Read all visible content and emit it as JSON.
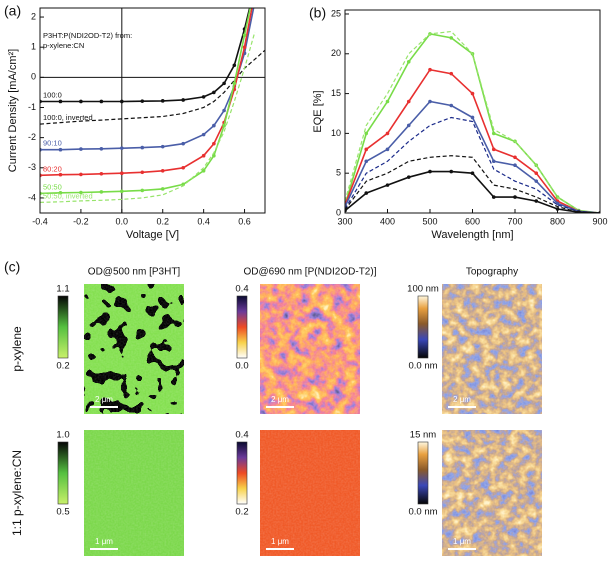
{
  "chart_data": [
    {
      "type": "line",
      "panel_label": "(a)",
      "xlabel": "Voltage [V]",
      "ylabel": "Current Density [mA/cm²]",
      "legend_title": "P3HT:P(NDI2OD-T2) from:",
      "legend_subtitle": "p-xylene:CN",
      "zero_lines": true,
      "x": [
        -0.4,
        -0.3,
        -0.2,
        -0.1,
        0,
        0.1,
        0.2,
        0.3,
        0.4,
        0.45,
        0.5,
        0.55,
        0.6,
        0.65,
        0.7
      ],
      "xlim": [
        -0.4,
        0.7
      ],
      "xticks": [
        -0.4,
        -0.2,
        {
          "value": 0,
          "label": "0.0"
        },
        0.2,
        0.4,
        0.6
      ],
      "ylim": [
        -4.5,
        2.3
      ],
      "yticks": [
        -4,
        -3,
        -2,
        -1,
        0,
        1,
        2
      ],
      "series": [
        {
          "name": "100:0",
          "color": "#111111",
          "dashed": false,
          "markers": true,
          "values": [
            -0.8,
            -0.8,
            -0.8,
            -0.8,
            -0.8,
            -0.79,
            -0.78,
            -0.75,
            -0.65,
            -0.5,
            -0.2,
            0.4,
            1.6,
            3.0,
            null
          ]
        },
        {
          "name": "100:0, inverted",
          "color": "#111111",
          "dashed": true,
          "markers": false,
          "values": [
            -1.55,
            -1.5,
            -1.45,
            -1.42,
            -1.38,
            -1.34,
            -1.3,
            -1.2,
            -1.0,
            -0.8,
            -0.5,
            -0.1,
            0.3,
            0.6,
            0.9
          ]
        },
        {
          "name": "90:10",
          "color": "#4a5ea8",
          "dashed": false,
          "markers": true,
          "values": [
            -2.4,
            -2.4,
            -2.38,
            -2.37,
            -2.35,
            -2.33,
            -2.3,
            -2.2,
            -1.9,
            -1.6,
            -1.1,
            -0.3,
            0.8,
            2.5,
            null
          ]
        },
        {
          "name": "80:20",
          "color": "#e83030",
          "dashed": false,
          "markers": true,
          "values": [
            -3.25,
            -3.23,
            -3.22,
            -3.2,
            -3.18,
            -3.15,
            -3.1,
            -3.0,
            -2.6,
            -2.2,
            -1.5,
            -0.4,
            1.0,
            2.8,
            null
          ]
        },
        {
          "name": "50:50",
          "color": "#78dc48",
          "dashed": false,
          "markers": true,
          "values": [
            -3.85,
            -3.83,
            -3.82,
            -3.8,
            -3.78,
            -3.75,
            -3.7,
            -3.55,
            -3.1,
            -2.6,
            -1.6,
            -0.2,
            1.4,
            3.0,
            null
          ]
        },
        {
          "name": "50:50, inverted",
          "color": "#98e46c",
          "dashed": true,
          "markers": false,
          "values": [
            -4.15,
            -4.13,
            -4.1,
            -4.08,
            -4.05,
            -4.0,
            -3.9,
            -3.6,
            -3.0,
            -2.5,
            -1.8,
            -0.8,
            0.3,
            1.5,
            null
          ]
        }
      ]
    },
    {
      "type": "line",
      "panel_label": "(b)",
      "xlabel": "Wavelength [nm]",
      "ylabel": "EQE [%]",
      "x": [
        300,
        350,
        400,
        450,
        500,
        550,
        600,
        650,
        700,
        750,
        800,
        850,
        900
      ],
      "xlim": [
        300,
        900
      ],
      "xticks": [
        300,
        400,
        500,
        600,
        700,
        800,
        900
      ],
      "ylim": [
        0,
        25.5
      ],
      "yticks": [
        0,
        5,
        10,
        15,
        20,
        25
      ],
      "series": [
        {
          "color": "#78dc48",
          "dashed": false,
          "markers": true,
          "values": [
            1,
            10,
            14,
            19,
            22.5,
            22,
            20,
            10,
            9,
            6,
            2,
            0.3,
            0
          ]
        },
        {
          "color": "#98e46c",
          "dashed": true,
          "markers": false,
          "values": [
            1.5,
            11,
            15,
            20,
            22.5,
            22.8,
            20,
            10.5,
            9,
            6,
            2,
            0.3,
            0
          ]
        },
        {
          "color": "#e83030",
          "dashed": false,
          "markers": true,
          "values": [
            1,
            8,
            10,
            14,
            18,
            17.5,
            15,
            8,
            7,
            5,
            1.5,
            0.2,
            0
          ]
        },
        {
          "color": "#4a5ea8",
          "dashed": false,
          "markers": true,
          "values": [
            0.8,
            6.5,
            8,
            11,
            14,
            13.5,
            12,
            6.5,
            6,
            4,
            1.2,
            0.2,
            0
          ]
        },
        {
          "color": "#1a2a8a",
          "dashed": true,
          "markers": false,
          "values": [
            0.5,
            5,
            6.5,
            9,
            11,
            12,
            11.5,
            5.5,
            4,
            3,
            1,
            0.2,
            0
          ]
        },
        {
          "color": "#111111",
          "dashed": false,
          "markers": true,
          "values": [
            0.3,
            2.5,
            3.5,
            4.5,
            5.2,
            5.2,
            5,
            2,
            2,
            1.5,
            0.5,
            0.1,
            0
          ]
        },
        {
          "color": "#111111",
          "dashed": true,
          "markers": false,
          "values": [
            0.4,
            4,
            5,
            6.5,
            7,
            7.2,
            7,
            3.5,
            3,
            2,
            0.8,
            0.1,
            0
          ]
        }
      ]
    }
  ],
  "panel_c": {
    "label": "(c)",
    "columns": [
      "OD@500 nm [P3HT]",
      "OD@690 nm [P(NDI2OD-T2)]",
      "Topography"
    ],
    "rows": [
      {
        "label": "p-xylene",
        "scale_bar": "2 μm",
        "colorbars": [
          [
            "1.1",
            "0.2"
          ],
          [
            "0.4",
            "0.0"
          ],
          [
            "100 nm",
            "0.0 nm"
          ]
        ]
      },
      {
        "label": "1:1 p-xylene:CN",
        "scale_bar": "1 μm",
        "colorbars": [
          [
            "1.0",
            "0.5"
          ],
          [
            "0.4",
            "0.2"
          ],
          [
            "15 nm",
            "0.0 nm"
          ]
        ]
      }
    ]
  }
}
